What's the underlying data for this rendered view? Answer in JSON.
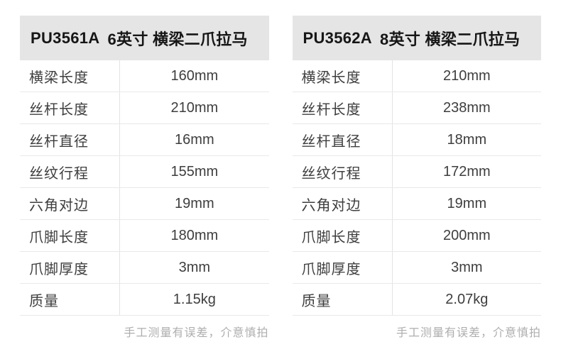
{
  "colors": {
    "background": "#ffffff",
    "header_bg": "#e5e5e5",
    "header_text": "#161616",
    "row_text": "#3e3e3e",
    "divider": "#e9e9e9",
    "note_text": "#aeaeae"
  },
  "tables": [
    {
      "model": "PU3561A",
      "subtitle": "6英寸 横梁二爪拉马",
      "rows": [
        {
          "label": "横梁长度",
          "value": "160mm"
        },
        {
          "label": "丝杆长度",
          "value": "210mm"
        },
        {
          "label": "丝杆直径",
          "value": "16mm"
        },
        {
          "label": "丝纹行程",
          "value": "155mm"
        },
        {
          "label": "六角对边",
          "value": "19mm"
        },
        {
          "label": "爪脚长度",
          "value": "180mm"
        },
        {
          "label": "爪脚厚度",
          "value": "3mm"
        },
        {
          "label": "质量",
          "value": "1.15kg"
        }
      ],
      "note": "手工测量有误差，介意慎拍"
    },
    {
      "model": "PU3562A",
      "subtitle": "8英寸 横梁二爪拉马",
      "rows": [
        {
          "label": "横梁长度",
          "value": "210mm"
        },
        {
          "label": "丝杆长度",
          "value": "238mm"
        },
        {
          "label": "丝杆直径",
          "value": "18mm"
        },
        {
          "label": "丝纹行程",
          "value": "172mm"
        },
        {
          "label": "六角对边",
          "value": "19mm"
        },
        {
          "label": "爪脚长度",
          "value": "200mm"
        },
        {
          "label": "爪脚厚度",
          "value": "3mm"
        },
        {
          "label": "质量",
          "value": "2.07kg"
        }
      ],
      "note": "手工测量有误差，介意慎拍"
    }
  ]
}
